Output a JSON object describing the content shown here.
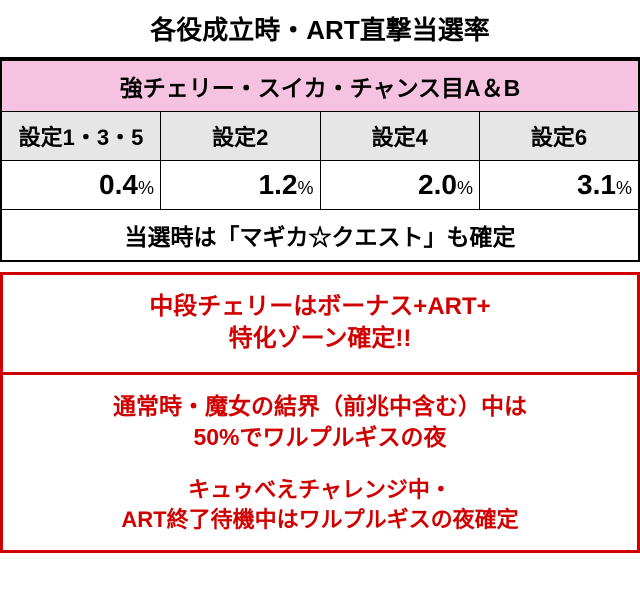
{
  "title": "各役成立時・ART直撃当選率",
  "table": {
    "main_header": "強チェリー・スイカ・チャンス目A＆B",
    "main_header_bg": "#f5c2e0",
    "sub_headers": [
      "設定1・3・5",
      "設定2",
      "設定4",
      "設定6"
    ],
    "sub_header_bg": "#e6e6e6",
    "row_values": [
      "0.4",
      "1.2",
      "2.0",
      "3.1"
    ],
    "percent_suffix": "%",
    "confirm_text": "当選時は「マギカ☆クエスト」も確定"
  },
  "redbox": {
    "border_color": "#d00000",
    "text_color": "#d00000",
    "section1_line1": "中段チェリーはボーナス+ART+",
    "section1_line2": "特化ゾーン確定!!",
    "section2_line1": "通常時・魔女の結界（前兆中含む）中は",
    "section2_line2": "50%でワルプルギスの夜",
    "section3_line1": "キュゥべえチャレンジ中・",
    "section3_line2": "ART終了待機中はワルプルギスの夜確定"
  }
}
